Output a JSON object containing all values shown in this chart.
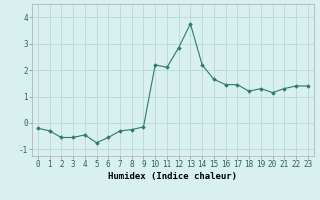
{
  "x": [
    0,
    1,
    2,
    3,
    4,
    5,
    6,
    7,
    8,
    9,
    10,
    11,
    12,
    13,
    14,
    15,
    16,
    17,
    18,
    19,
    20,
    21,
    22,
    23
  ],
  "y": [
    -0.2,
    -0.3,
    -0.55,
    -0.55,
    -0.45,
    -0.75,
    -0.55,
    -0.3,
    -0.25,
    -0.15,
    2.2,
    2.1,
    2.85,
    3.75,
    2.2,
    1.65,
    1.45,
    1.45,
    1.2,
    1.3,
    1.15,
    1.3,
    1.4,
    1.4
  ],
  "line_color": "#2d7a6e",
  "marker": "D",
  "marker_size": 1.8,
  "bg_color": "#d8f0f0",
  "grid_color": "#b8d8d8",
  "xlabel": "Humidex (Indice chaleur)",
  "ylim": [
    -1.25,
    4.5
  ],
  "xlim": [
    -0.5,
    23.5
  ],
  "yticks": [
    -1,
    0,
    1,
    2,
    3,
    4
  ],
  "xlabel_fontsize": 6.5,
  "tick_fontsize": 5.5
}
